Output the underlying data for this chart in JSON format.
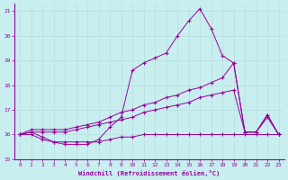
{
  "xlabel": "Windchill (Refroidissement éolien,°C)",
  "bg_color": "#c8eef0",
  "line_color": "#990099",
  "grid_color": "#b8dede",
  "xlim": [
    -0.5,
    23.5
  ],
  "ylim": [
    15.0,
    21.3
  ],
  "yticks": [
    15,
    16,
    17,
    18,
    19,
    20,
    21
  ],
  "xticks": [
    0,
    1,
    2,
    3,
    4,
    5,
    6,
    7,
    8,
    9,
    10,
    11,
    12,
    13,
    14,
    15,
    16,
    17,
    18,
    19,
    20,
    21,
    22,
    23
  ],
  "series": [
    {
      "x": [
        0,
        1,
        2,
        3,
        4,
        5,
        6,
        7,
        8,
        9,
        10,
        11,
        12,
        13,
        14,
        15,
        16,
        17,
        18,
        19,
        20,
        21,
        22,
        23
      ],
      "y": [
        16.0,
        16.1,
        15.9,
        15.7,
        15.6,
        15.6,
        15.6,
        15.8,
        16.3,
        16.7,
        18.6,
        18.9,
        19.1,
        19.3,
        20.0,
        20.6,
        21.1,
        20.3,
        19.2,
        18.9,
        16.1,
        16.1,
        16.8,
        16.0
      ]
    },
    {
      "x": [
        0,
        1,
        2,
        3,
        4,
        5,
        6,
        7,
        8,
        9,
        10,
        11,
        12,
        13,
        14,
        15,
        16,
        17,
        18,
        19,
        20,
        21,
        22,
        23
      ],
      "y": [
        16.0,
        16.0,
        15.8,
        15.7,
        15.7,
        15.7,
        15.7,
        15.7,
        15.8,
        15.9,
        15.9,
        16.0,
        16.0,
        16.0,
        16.0,
        16.0,
        16.0,
        16.0,
        16.0,
        16.0,
        16.0,
        16.0,
        16.0,
        16.0
      ]
    },
    {
      "x": [
        0,
        1,
        2,
        3,
        4,
        5,
        6,
        7,
        8,
        9,
        10,
        11,
        12,
        13,
        14,
        15,
        16,
        17,
        18,
        19,
        20,
        21,
        22,
        23
      ],
      "y": [
        16.0,
        16.2,
        16.2,
        16.2,
        16.2,
        16.3,
        16.4,
        16.5,
        16.7,
        16.9,
        17.0,
        17.2,
        17.3,
        17.5,
        17.6,
        17.8,
        17.9,
        18.1,
        18.3,
        18.9,
        16.1,
        16.1,
        16.8,
        16.0
      ]
    },
    {
      "x": [
        0,
        1,
        2,
        3,
        4,
        5,
        6,
        7,
        8,
        9,
        10,
        11,
        12,
        13,
        14,
        15,
        16,
        17,
        18,
        19,
        20,
        21,
        22,
        23
      ],
      "y": [
        16.0,
        16.1,
        16.1,
        16.1,
        16.1,
        16.2,
        16.3,
        16.4,
        16.5,
        16.6,
        16.7,
        16.9,
        17.0,
        17.1,
        17.2,
        17.3,
        17.5,
        17.6,
        17.7,
        17.8,
        16.1,
        16.1,
        16.7,
        16.0
      ]
    }
  ]
}
